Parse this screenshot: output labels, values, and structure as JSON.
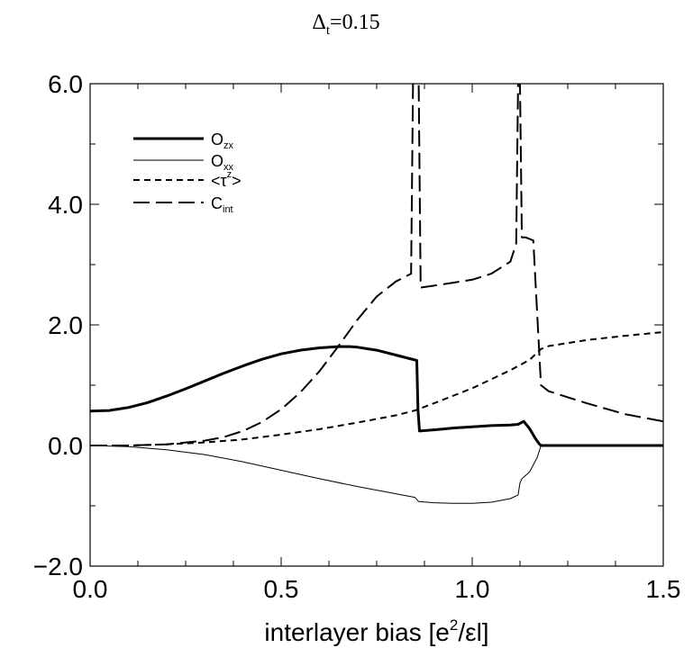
{
  "chart_data": {
    "type": "line",
    "title": "Δ",
    "title_sub": "t",
    "title_value": "=0.15",
    "xlabel": "interlayer bias [e",
    "xlabel_sup": "2",
    "xlabel_end": "/εl]",
    "ylabel": "",
    "xlim": [
      0.0,
      1.5
    ],
    "ylim": [
      -2.0,
      6.0
    ],
    "xticks": [
      "0.0",
      "0.5",
      "1.0",
      "1.5"
    ],
    "yticks": [
      "−2.0",
      "0.0",
      "2.0",
      "4.0",
      "6.0"
    ],
    "xtick_values": [
      0.0,
      0.5,
      1.0,
      1.5
    ],
    "ytick_values": [
      -2.0,
      0.0,
      2.0,
      4.0,
      6.0
    ],
    "grid": false,
    "legend_position": "top-left",
    "series": [
      {
        "name": "O",
        "name_sub": "zx",
        "style": "thick-solid",
        "x": [
          0.0,
          0.05,
          0.1,
          0.15,
          0.2,
          0.25,
          0.3,
          0.35,
          0.4,
          0.45,
          0.5,
          0.55,
          0.6,
          0.65,
          0.68,
          0.7,
          0.75,
          0.8,
          0.855,
          0.858,
          0.862,
          0.9,
          0.95,
          1.0,
          1.05,
          1.1,
          1.12,
          1.135,
          1.15,
          1.165,
          1.175,
          1.18,
          1.2,
          1.3,
          1.4,
          1.5
        ],
        "y": [
          0.57,
          0.58,
          0.63,
          0.71,
          0.82,
          0.94,
          1.07,
          1.2,
          1.32,
          1.43,
          1.52,
          1.58,
          1.62,
          1.64,
          1.64,
          1.63,
          1.58,
          1.5,
          1.41,
          0.6,
          0.24,
          0.26,
          0.29,
          0.31,
          0.33,
          0.34,
          0.35,
          0.4,
          0.28,
          0.12,
          0.03,
          0.0,
          0.0,
          0.0,
          0.0,
          0.0
        ]
      },
      {
        "name": "O",
        "name_sub": "xx",
        "style": "thin-solid",
        "x": [
          0.0,
          0.1,
          0.2,
          0.3,
          0.4,
          0.5,
          0.6,
          0.7,
          0.8,
          0.85,
          0.86,
          0.9,
          0.95,
          1.0,
          1.05,
          1.1,
          1.12,
          1.125,
          1.13,
          1.15,
          1.17,
          1.18,
          1.2,
          1.3,
          1.4,
          1.5
        ],
        "y": [
          0.0,
          -0.02,
          -0.07,
          -0.15,
          -0.27,
          -0.41,
          -0.55,
          -0.68,
          -0.8,
          -0.86,
          -0.93,
          -0.95,
          -0.96,
          -0.96,
          -0.94,
          -0.88,
          -0.82,
          -0.62,
          -0.55,
          -0.44,
          -0.2,
          0.0,
          0.0,
          0.0,
          0.0,
          0.0
        ]
      },
      {
        "name": "<τ",
        "name_sup": "z",
        "name_end": ">",
        "style": "short-dash",
        "x": [
          0.0,
          0.1,
          0.2,
          0.3,
          0.4,
          0.5,
          0.6,
          0.7,
          0.8,
          0.85,
          0.9,
          1.0,
          1.1,
          1.15,
          1.18,
          1.2,
          1.3,
          1.4,
          1.5
        ],
        "y": [
          0.0,
          0.0,
          0.02,
          0.05,
          0.1,
          0.18,
          0.27,
          0.38,
          0.5,
          0.58,
          0.7,
          0.95,
          1.25,
          1.42,
          1.6,
          1.65,
          1.75,
          1.82,
          1.88
        ]
      },
      {
        "name": "C",
        "name_sub": "int",
        "style": "long-dash",
        "x": [
          0.0,
          0.1,
          0.2,
          0.3,
          0.35,
          0.4,
          0.45,
          0.5,
          0.55,
          0.6,
          0.65,
          0.7,
          0.75,
          0.8,
          0.84,
          0.845,
          0.85,
          0.855,
          0.86,
          0.865,
          0.9,
          0.95,
          1.0,
          1.05,
          1.1,
          1.115,
          1.12,
          1.125,
          1.13,
          1.14,
          1.16,
          1.18,
          1.2,
          1.3,
          1.4,
          1.5
        ],
        "y": [
          0.0,
          0.0,
          0.02,
          0.08,
          0.14,
          0.24,
          0.39,
          0.6,
          0.88,
          1.23,
          1.65,
          2.09,
          2.47,
          2.72,
          2.85,
          6.0,
          6.0,
          6.0,
          6.0,
          2.62,
          2.65,
          2.7,
          2.75,
          2.85,
          3.05,
          3.35,
          6.0,
          6.0,
          3.45,
          3.45,
          3.4,
          1.0,
          0.9,
          0.7,
          0.52,
          0.4
        ]
      }
    ]
  }
}
